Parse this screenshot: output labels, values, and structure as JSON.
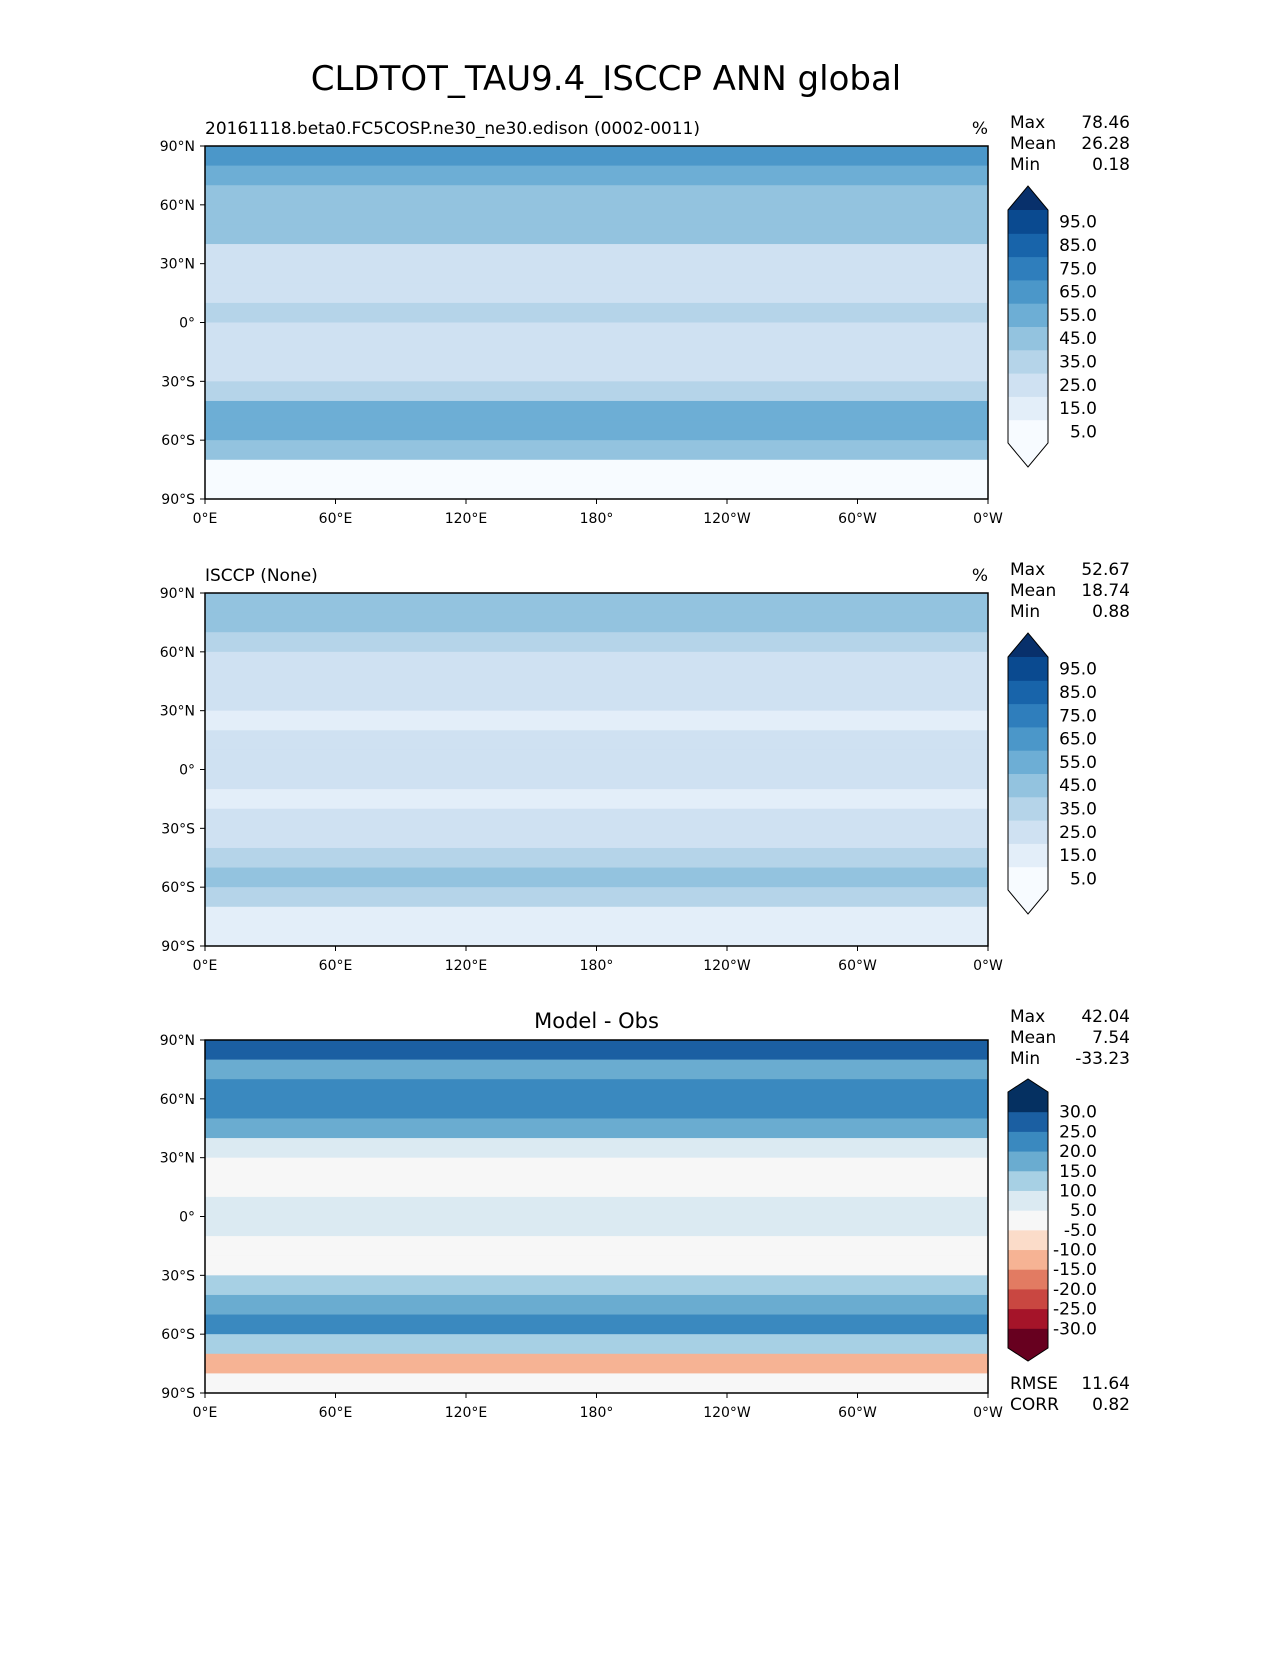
{
  "chart_data": {
    "type": "heatmap",
    "title": "CLDTOT_TAU9.4_ISCCP ANN global",
    "lon_ticks": [
      "0°E",
      "60°E",
      "120°E",
      "180°",
      "120°W",
      "60°W",
      "0°W"
    ],
    "lat_ticks": [
      "90°N",
      "60°N",
      "30°N",
      "0°",
      "30°S",
      "60°S",
      "90°S"
    ],
    "zonal_lat_bins": [
      "90-80N",
      "80-70N",
      "70-60N",
      "60-50N",
      "50-40N",
      "40-30N",
      "30-20N",
      "20-10N",
      "10-0N",
      "0-10S",
      "10-20S",
      "20-30S",
      "30-40S",
      "40-50S",
      "50-60S",
      "60-70S",
      "70-80S",
      "80-90S"
    ],
    "panels": [
      {
        "title_left": "20161118.beta0.FC5COSP.ne30_ne30.edison (0002-0011)",
        "title_center": "",
        "units": "%",
        "stats": [
          {
            "label": "Max",
            "value": "78.46"
          },
          {
            "label": "Mean",
            "value": "26.28"
          },
          {
            "label": "Min",
            "value": "0.18"
          }
        ],
        "colorbar": {
          "levels": [
            0,
            10,
            20,
            30,
            40,
            50,
            60,
            70,
            80,
            90,
            100
          ],
          "tick_labels": [
            "95.0",
            "85.0",
            "75.0",
            "65.0",
            "55.0",
            "45.0",
            "35.0",
            "25.0",
            "15.0",
            "5.0"
          ],
          "colors": [
            "#f7fbff",
            "#e3eef9",
            "#cfe1f2",
            "#b5d4e9",
            "#93c3df",
            "#6daed5",
            "#4b97c9",
            "#2f7ebc",
            "#1864aa",
            "#0a4a90"
          ],
          "extend_low": "#f7fbff",
          "extend_high": "#08306b"
        },
        "zonal_approx": [
          60,
          50,
          45,
          45,
          40,
          25,
          20,
          25,
          30,
          25,
          20,
          25,
          35,
          50,
          55,
          45,
          5,
          5
        ]
      },
      {
        "title_left": "ISCCP (None)",
        "title_center": "",
        "units": "%",
        "stats": [
          {
            "label": "Max",
            "value": "52.67"
          },
          {
            "label": "Mean",
            "value": "18.74"
          },
          {
            "label": "Min",
            "value": "0.88"
          }
        ],
        "colorbar": {
          "levels": [
            0,
            10,
            20,
            30,
            40,
            50,
            60,
            70,
            80,
            90,
            100
          ],
          "tick_labels": [
            "95.0",
            "85.0",
            "75.0",
            "65.0",
            "55.0",
            "45.0",
            "35.0",
            "25.0",
            "15.0",
            "5.0"
          ],
          "colors": [
            "#f7fbff",
            "#e3eef9",
            "#cfe1f2",
            "#b5d4e9",
            "#93c3df",
            "#6daed5",
            "#4b97c9",
            "#2f7ebc",
            "#1864aa",
            "#0a4a90"
          ],
          "extend_low": "#f7fbff",
          "extend_high": "#08306b"
        },
        "zonal_approx": [
          45,
          40,
          30,
          25,
          25,
          20,
          15,
          20,
          25,
          20,
          15,
          20,
          25,
          35,
          40,
          35,
          15,
          15
        ]
      },
      {
        "title_left": "",
        "title_center": "Model - Obs",
        "units": "",
        "stats": [
          {
            "label": "Max",
            "value": "42.04"
          },
          {
            "label": "Mean",
            "value": "7.54"
          },
          {
            "label": "Min",
            "value": "-33.23"
          }
        ],
        "colorbar": {
          "levels": [
            -35,
            -30,
            -25,
            -20,
            -15,
            -10,
            -5,
            5,
            10,
            15,
            20,
            25,
            30,
            35
          ],
          "tick_labels": [
            "30.0",
            "25.0",
            "20.0",
            "15.0",
            "10.0",
            "5.0",
            "-5.0",
            "-10.0",
            "-15.0",
            "-20.0",
            "-25.0",
            "-30.0"
          ],
          "colors": [
            "#67001f",
            "#a51429",
            "#c94741",
            "#e27b62",
            "#f6b394",
            "#fbdcc9",
            "#f7f7f7",
            "#dbeaf2",
            "#a7d0e4",
            "#6aacd0",
            "#3a89bf",
            "#1b5fa2",
            "#053061"
          ],
          "extend_low": "#67001f",
          "extend_high": "#053061"
        },
        "zonal_approx": [
          25,
          15,
          20,
          20,
          15,
          5,
          3,
          0,
          5,
          5,
          0,
          0,
          10,
          15,
          20,
          10,
          -15,
          -5
        ],
        "metrics": [
          {
            "label": "RMSE",
            "value": "11.64"
          },
          {
            "label": "CORR",
            "value": "0.82"
          }
        ]
      }
    ]
  }
}
